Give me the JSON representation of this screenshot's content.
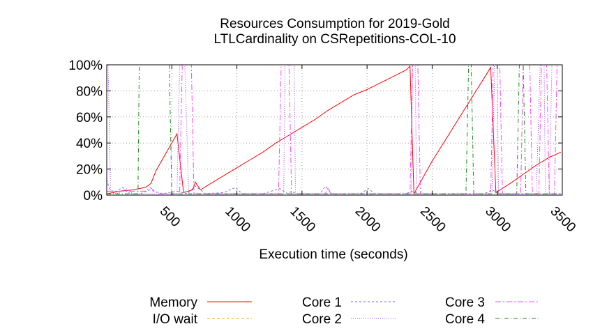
{
  "chart_data": {
    "type": "line",
    "title": [
      "Resources Consumption for 2019-Gold",
      "LTLCardinality on CSRepetitions-COL-10"
    ],
    "xlabel": "Execution time (seconds)",
    "ylabel": "",
    "xlim": [
      0,
      3500
    ],
    "ylim": [
      0,
      100
    ],
    "x_ticks": [
      500,
      1000,
      1500,
      2000,
      2500,
      3000,
      3500
    ],
    "x_tick_labels": [
      "500",
      "1000",
      "1500",
      "2000",
      "2500",
      "3000",
      "3500"
    ],
    "y_ticks": [
      0,
      20,
      40,
      60,
      80,
      100
    ],
    "y_tick_labels": [
      "0%",
      "20%",
      "40%",
      "60%",
      "80%",
      "100%"
    ],
    "grid": true,
    "legend_position": "bottom",
    "series": [
      {
        "name": "Memory",
        "color": "#ff0000",
        "dash": "",
        "points": [
          [
            0,
            1
          ],
          [
            100,
            3
          ],
          [
            200,
            4
          ],
          [
            300,
            6
          ],
          [
            340,
            9
          ],
          [
            380,
            19
          ],
          [
            540,
            47
          ],
          [
            590,
            2
          ],
          [
            660,
            4
          ],
          [
            680,
            10
          ],
          [
            720,
            4
          ],
          [
            800,
            9
          ],
          [
            900,
            15
          ],
          [
            1000,
            21
          ],
          [
            1100,
            27
          ],
          [
            1200,
            33
          ],
          [
            1300,
            40
          ],
          [
            1400,
            46
          ],
          [
            1500,
            52
          ],
          [
            1600,
            58
          ],
          [
            1700,
            65
          ],
          [
            1800,
            71
          ],
          [
            1900,
            77
          ],
          [
            2000,
            81
          ],
          [
            2100,
            86
          ],
          [
            2200,
            91
          ],
          [
            2300,
            96
          ],
          [
            2330,
            99
          ],
          [
            2360,
            1
          ],
          [
            2500,
            26
          ],
          [
            2600,
            42
          ],
          [
            2700,
            58
          ],
          [
            2800,
            74
          ],
          [
            2900,
            90
          ],
          [
            2950,
            98
          ],
          [
            2990,
            2
          ],
          [
            3100,
            9
          ],
          [
            3200,
            16
          ],
          [
            3300,
            23
          ],
          [
            3400,
            29
          ],
          [
            3490,
            33
          ]
        ]
      },
      {
        "name": "I/O wait",
        "color": "#ffa500",
        "dash": "4,3",
        "points": [
          [
            0,
            0
          ],
          [
            3490,
            0
          ]
        ]
      },
      {
        "name": "Core 1",
        "color": "#7b68ee",
        "dash": "3,3",
        "points": [
          [
            0,
            12
          ],
          [
            20,
            5
          ],
          [
            60,
            2
          ],
          [
            120,
            6
          ],
          [
            180,
            1
          ],
          [
            260,
            1
          ],
          [
            330,
            4
          ],
          [
            430,
            1
          ],
          [
            540,
            3
          ],
          [
            620,
            1
          ],
          [
            680,
            7
          ],
          [
            760,
            1
          ],
          [
            900,
            2
          ],
          [
            990,
            6
          ],
          [
            1040,
            1
          ],
          [
            1200,
            1
          ],
          [
            1330,
            5
          ],
          [
            1390,
            1
          ],
          [
            1420,
            3
          ],
          [
            1460,
            1
          ],
          [
            1640,
            1
          ],
          [
            1680,
            7
          ],
          [
            1730,
            1
          ],
          [
            1950,
            1
          ],
          [
            2010,
            5
          ],
          [
            2060,
            1
          ],
          [
            2300,
            1
          ],
          [
            2340,
            3
          ],
          [
            2400,
            1
          ],
          [
            2900,
            1
          ],
          [
            2960,
            4
          ],
          [
            3020,
            1
          ],
          [
            3200,
            1
          ],
          [
            3490,
            1
          ]
        ]
      },
      {
        "name": "Core 2",
        "color": "#a040ff",
        "dash": "1,2",
        "points": [
          [
            0,
            100
          ],
          [
            10,
            100
          ],
          [
            30,
            2
          ],
          [
            80,
            1
          ],
          [
            150,
            5
          ],
          [
            200,
            1
          ],
          [
            540,
            1
          ],
          [
            560,
            100
          ],
          [
            600,
            100
          ],
          [
            630,
            1
          ],
          [
            1000,
            1
          ],
          [
            1360,
            1
          ],
          [
            1370,
            100
          ],
          [
            1440,
            100
          ],
          [
            1450,
            1
          ],
          [
            2340,
            1
          ],
          [
            2350,
            100
          ],
          [
            2370,
            100
          ],
          [
            2380,
            1
          ],
          [
            2960,
            1
          ],
          [
            2980,
            100
          ],
          [
            3000,
            100
          ],
          [
            3010,
            1
          ],
          [
            3300,
            1
          ],
          [
            3330,
            100
          ],
          [
            3360,
            100
          ],
          [
            3370,
            1
          ],
          [
            3400,
            1
          ],
          [
            3420,
            100
          ],
          [
            3490,
            100
          ]
        ]
      },
      {
        "name": "Core 3",
        "color": "#ff44ff",
        "dash": "8,3,2,3",
        "points": [
          [
            0,
            3
          ],
          [
            300,
            3
          ],
          [
            330,
            6
          ],
          [
            400,
            1
          ],
          [
            560,
            1
          ],
          [
            580,
            100
          ],
          [
            650,
            100
          ],
          [
            670,
            1
          ],
          [
            1320,
            1
          ],
          [
            1340,
            100
          ],
          [
            1400,
            100
          ],
          [
            1420,
            1
          ],
          [
            1680,
            1
          ],
          [
            1700,
            6
          ],
          [
            1720,
            1
          ],
          [
            2330,
            1
          ],
          [
            2350,
            100
          ],
          [
            2390,
            100
          ],
          [
            2410,
            1
          ],
          [
            2950,
            1
          ],
          [
            2970,
            100
          ],
          [
            3020,
            100
          ],
          [
            3040,
            1
          ],
          [
            3180,
            1
          ],
          [
            3200,
            100
          ],
          [
            3250,
            100
          ],
          [
            3270,
            1
          ],
          [
            3320,
            1
          ],
          [
            3340,
            100
          ],
          [
            3380,
            100
          ],
          [
            3400,
            1
          ],
          [
            3440,
            1
          ],
          [
            3460,
            100
          ],
          [
            3490,
            100
          ]
        ]
      },
      {
        "name": "Core 4",
        "color": "#1a8a1a",
        "dash": "6,3,1,3",
        "points": [
          [
            0,
            1
          ],
          [
            240,
            1
          ],
          [
            250,
            100
          ],
          [
            480,
            100
          ],
          [
            500,
            1
          ],
          [
            2760,
            1
          ],
          [
            2780,
            100
          ],
          [
            2800,
            100
          ],
          [
            2820,
            1
          ],
          [
            3150,
            1
          ],
          [
            3170,
            100
          ],
          [
            3200,
            100
          ],
          [
            3220,
            1
          ],
          [
            3490,
            1
          ]
        ]
      }
    ]
  }
}
